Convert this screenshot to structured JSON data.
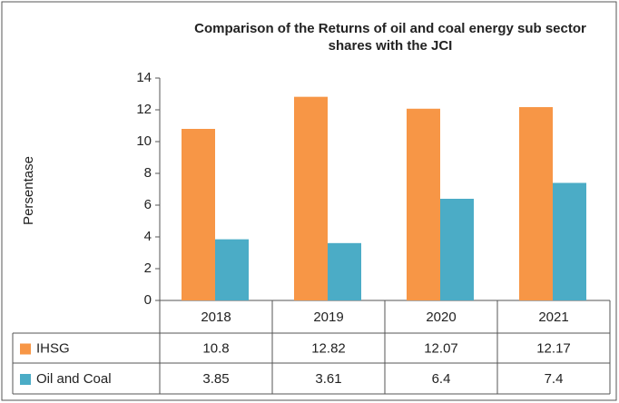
{
  "chart_data": {
    "type": "bar",
    "title": "Comparison of the Returns of oil and coal energy sub sector shares with the JCI",
    "y_label": "Persentase",
    "categories": [
      "2018",
      "2019",
      "2020",
      "2021"
    ],
    "series": [
      {
        "name": "IHSG",
        "color": "#f79646",
        "values": [
          10.8,
          12.82,
          12.07,
          12.17
        ]
      },
      {
        "name": "Oil and Coal",
        "color": "#4bacc6",
        "values": [
          3.85,
          3.61,
          6.4,
          7.4
        ]
      }
    ],
    "ylim": [
      0,
      14
    ],
    "yticks": [
      0,
      2,
      4,
      6,
      8,
      10,
      12,
      14
    ],
    "grid": false
  }
}
